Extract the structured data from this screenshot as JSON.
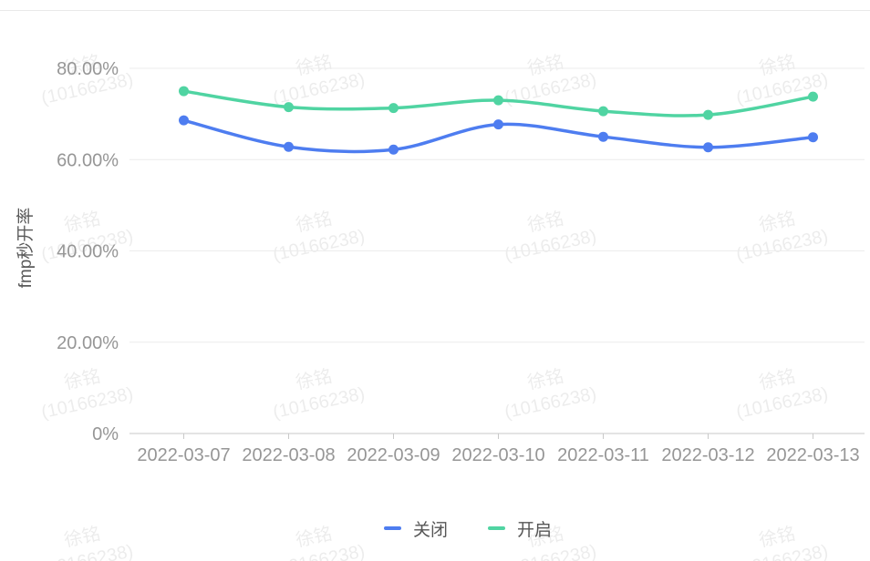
{
  "watermark": {
    "line1": "徐铭",
    "line2": "(10166238)"
  },
  "chart_data": {
    "type": "line",
    "title": "",
    "xlabel": "",
    "ylabel": "fmp秒开率",
    "smooth": true,
    "grid": true,
    "legend_position": "bottom",
    "legend": [
      "关闭",
      "开启"
    ],
    "categories": [
      "2022-03-07",
      "2022-03-08",
      "2022-03-09",
      "2022-03-10",
      "2022-03-11",
      "2022-03-12",
      "2022-03-13"
    ],
    "series": [
      {
        "name": "关闭",
        "color": "#4e7df0",
        "values": [
          68.6,
          62.8,
          62.2,
          67.7,
          65.0,
          62.7,
          64.9
        ]
      },
      {
        "name": "开启",
        "color": "#50d4a2",
        "values": [
          75.0,
          71.5,
          71.3,
          73.0,
          70.6,
          69.8,
          73.8
        ]
      }
    ],
    "y_ticks": [
      {
        "label": "0%",
        "value": 0
      },
      {
        "label": "20.00%",
        "value": 20
      },
      {
        "label": "40.00%",
        "value": 40
      },
      {
        "label": "60.00%",
        "value": 60
      },
      {
        "label": "80.00%",
        "value": 80
      }
    ],
    "ylim": [
      0,
      84
    ]
  },
  "colors": {
    "grid_line": "#ececec",
    "axis_line": "#c9c9c9",
    "axis_label": "#969696",
    "y_title": "#5a5a5a",
    "legend_text": "#565656",
    "divider": "#e9e9e9"
  }
}
